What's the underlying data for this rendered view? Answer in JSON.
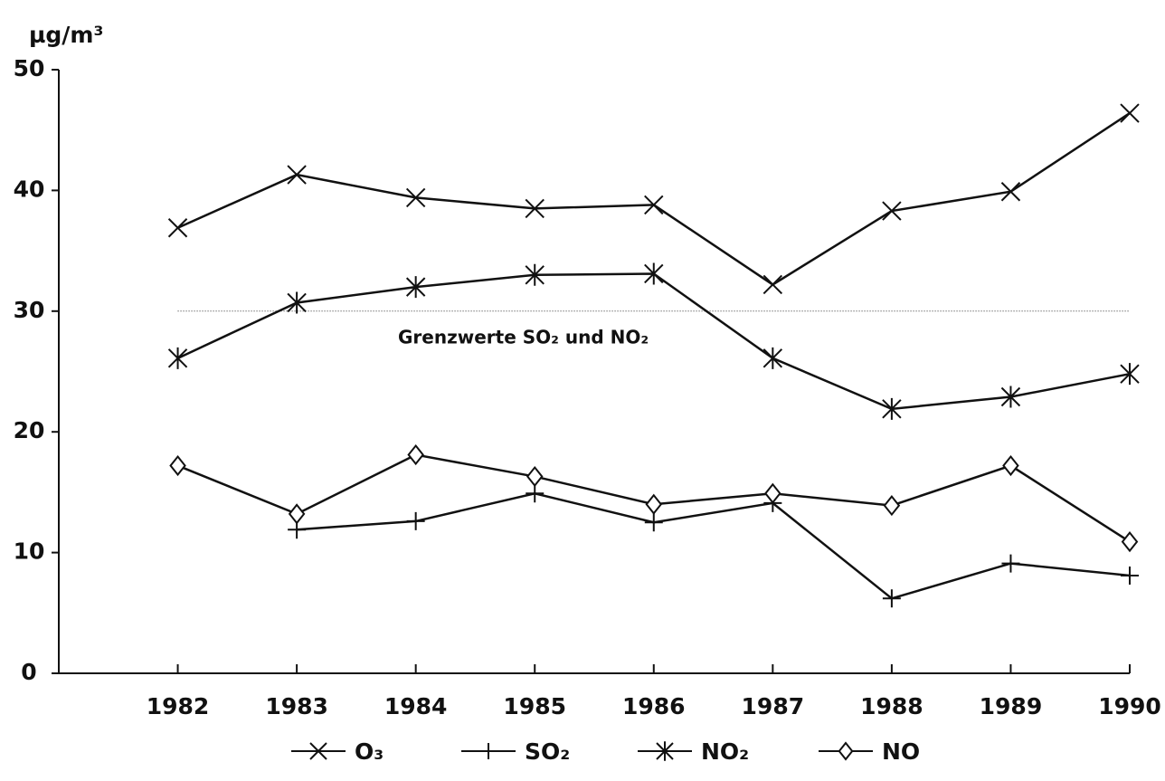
{
  "chart_data": {
    "type": "line",
    "y_label": "µg/m³",
    "x": [
      1982,
      1983,
      1984,
      1985,
      1986,
      1987,
      1988,
      1989,
      1990
    ],
    "xlim": [
      1981,
      1990
    ],
    "xticks": [
      1982,
      1983,
      1984,
      1985,
      1986,
      1987,
      1988,
      1989,
      1990
    ],
    "ylim": [
      0,
      50
    ],
    "yticks": [
      0,
      10,
      20,
      30,
      40,
      50
    ],
    "series": [
      {
        "name": "O₃",
        "color": "#111111",
        "marker": "x",
        "values": [
          36.9,
          41.3,
          39.4,
          38.5,
          38.8,
          32.2,
          38.3,
          39.9,
          46.4
        ]
      },
      {
        "name": "SO₂",
        "color": "#111111",
        "marker": "plus",
        "values": [
          null,
          11.9,
          12.6,
          14.9,
          12.5,
          14.1,
          6.2,
          9.1,
          8.1
        ]
      },
      {
        "name": "NO₂",
        "color": "#111111",
        "marker": "asterisk",
        "values": [
          26.1,
          30.7,
          32.0,
          33.0,
          33.1,
          26.1,
          21.9,
          22.9,
          24.8
        ]
      },
      {
        "name": "NO",
        "color": "#111111",
        "marker": "diamond",
        "values": [
          17.2,
          13.2,
          18.1,
          16.3,
          14.0,
          14.9,
          13.9,
          17.2,
          10.9
        ]
      }
    ],
    "reference_line": {
      "y": 30,
      "label": "Grenzwerte SO₂ und NO₂"
    }
  }
}
